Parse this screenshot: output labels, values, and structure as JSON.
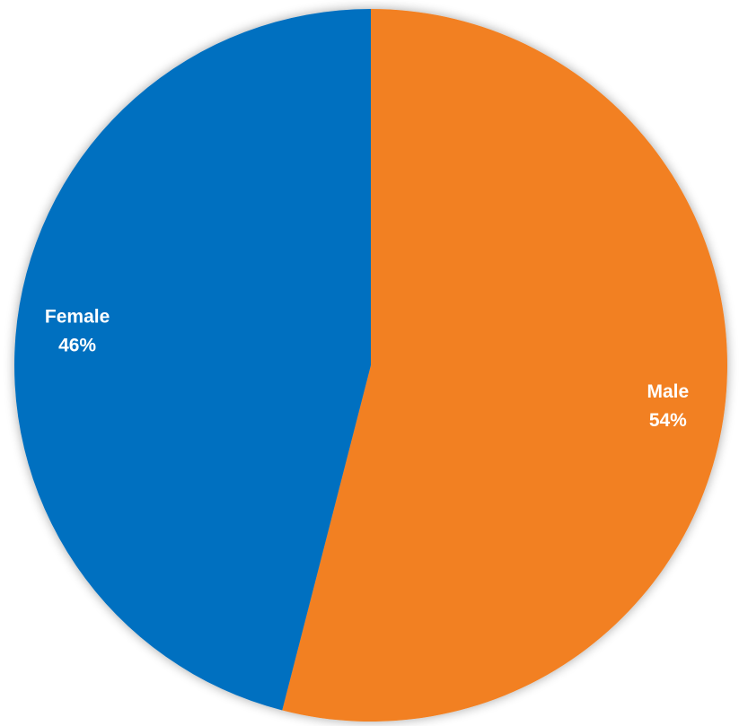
{
  "chart_data": {
    "type": "pie",
    "slices": [
      {
        "category": "Male",
        "value": 54,
        "value_label": "54%",
        "color": "#F28022"
      },
      {
        "category": "Female",
        "value": 46,
        "value_label": "46%",
        "color": "#0070C0"
      }
    ],
    "start_angle": "12 o'clock",
    "direction": "clockwise",
    "slice_labels": "inside, white bold, category and percentage",
    "legend": "none",
    "shadow": true
  }
}
